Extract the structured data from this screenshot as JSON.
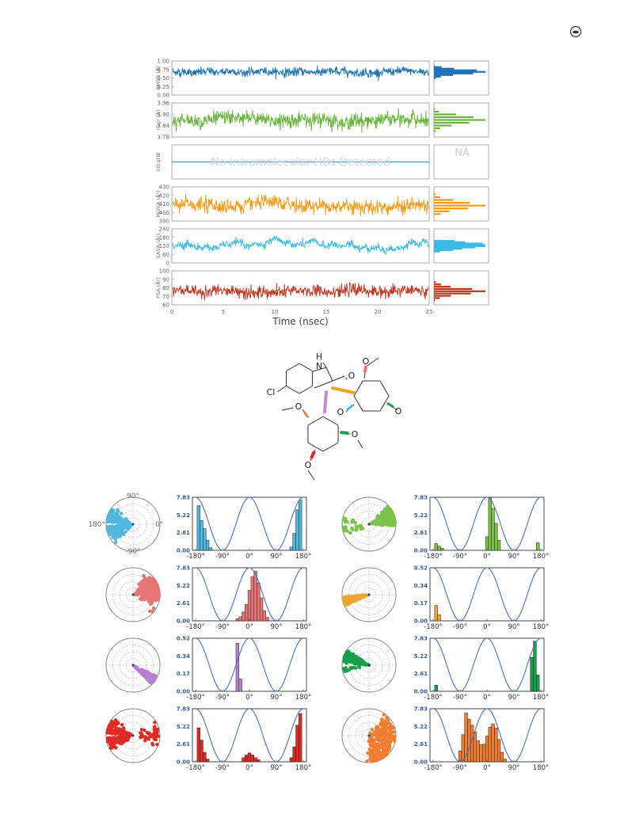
{
  "chart_data": [
    {
      "type": "line",
      "panel": "timeseries",
      "xlabel": "Time (nsec)",
      "xlim": [
        0,
        25
      ],
      "xticks": [
        0,
        5,
        10,
        15,
        20,
        25
      ],
      "rows": [
        {
          "key": "rmsd",
          "ylabel": "RMSD (Å)",
          "yticks_labels": [
            "1.00",
            "0.75",
            "0.50",
            "0.25",
            "0.00"
          ],
          "ylim": [
            0.0,
            1.0
          ],
          "mean": 0.68,
          "spread": 0.07,
          "color": "#1a72b5"
        },
        {
          "key": "rgyr",
          "ylabel": "rGyr (Å)",
          "yticks_labels": [
            "3.96",
            "3.90",
            "3.84",
            "3.78"
          ],
          "ylim": [
            3.78,
            3.96
          ],
          "mean": 3.87,
          "spread": 0.022,
          "color": "#6ab43e"
        },
        {
          "key": "intrahb",
          "ylabel": "intraHB",
          "flat_value": 0.5,
          "message": "No Intramolecular HBs Detected",
          "side_label": "NA",
          "color": "#3aa0c8"
        },
        {
          "key": "molsa",
          "ylabel": "MolSA (Å²)",
          "yticks_labels": [
            "430",
            "420",
            "410",
            "400",
            "390"
          ],
          "ylim": [
            390,
            430
          ],
          "mean": 408,
          "spread": 5,
          "color": "#f39c1a"
        },
        {
          "key": "sasa",
          "ylabel": "SASA (Å²)",
          "yticks_labels": [
            "240",
            "180",
            "120",
            "60",
            "0"
          ],
          "ylim": [
            0,
            240
          ],
          "mean": 118,
          "spread": 14,
          "color": "#3bbbe6"
        },
        {
          "key": "psa",
          "ylabel": "PSA (Å²)",
          "yticks_labels": [
            "100",
            "90",
            "80",
            "70",
            "60"
          ],
          "ylim": [
            60,
            100
          ],
          "mean": 76,
          "spread": 4,
          "color": "#c0341d"
        }
      ]
    },
    {
      "type": "bar",
      "panel": "torsion-profiles",
      "x_tick_labels": [
        "-180°",
        "-90°",
        "0°",
        "90°",
        "180°"
      ],
      "polar_labels": {
        "top": "90°",
        "left": "180°",
        "right": "0°",
        "bottom": "-90°"
      },
      "torsions": [
        {
          "id": "t1",
          "color": "#4fb8e0",
          "yticks": [
            "7.83",
            "5.22",
            "2.61",
            "0.00"
          ],
          "ymax": 7.83,
          "bins_center": [
            -170,
            -160,
            -150,
            -140,
            -130,
            140,
            150,
            160,
            170
          ],
          "values": [
            6.6,
            4.4,
            3.2,
            1.5,
            0.4,
            0.5,
            2.5,
            6.0,
            7.4
          ]
        },
        {
          "id": "t2",
          "color": "#7cc24a",
          "yticks": [
            "7.83",
            "5.22",
            "2.61",
            "0.00"
          ],
          "ymax": 7.83,
          "bins_center": [
            -170,
            -160,
            -150,
            0,
            10,
            20,
            30,
            40,
            170
          ],
          "values": [
            1.0,
            0.6,
            0.3,
            2.0,
            7.8,
            6.2,
            4.0,
            1.5,
            1.1
          ]
        },
        {
          "id": "t3",
          "color": "#e87575",
          "yticks": [
            "7.83",
            "5.22",
            "2.61",
            "0.00"
          ],
          "ymax": 7.83,
          "bins_center": [
            -40,
            -30,
            -20,
            -10,
            0,
            10,
            20,
            30,
            40,
            50,
            60
          ],
          "values": [
            0.3,
            0.6,
            1.3,
            2.4,
            4.5,
            6.5,
            7.3,
            5.6,
            3.4,
            1.5,
            0.5
          ]
        },
        {
          "id": "t4",
          "color": "#f0a530",
          "yticks": [
            "0.52",
            "0.34",
            "0.17",
            "0.00"
          ],
          "ymax": 0.52,
          "bins_center": [
            -170,
            -160
          ],
          "values": [
            0.15,
            0.06
          ]
        },
        {
          "id": "t5",
          "color": "#b97fd0",
          "yticks": [
            "0.52",
            "0.34",
            "0.17",
            "0.00"
          ],
          "ymax": 0.52,
          "bins_center": [
            -40,
            -30
          ],
          "values": [
            0.47,
            0.12
          ]
        },
        {
          "id": "t6",
          "color": "#16a04a",
          "yticks": [
            "7.83",
            "5.22",
            "2.61",
            "0.00"
          ],
          "ymax": 7.83,
          "bins_center": [
            -170,
            150,
            160,
            170
          ],
          "values": [
            0.9,
            5.0,
            7.4,
            2.4
          ]
        },
        {
          "id": "t7",
          "color": "#de2c24",
          "yticks": [
            "7.83",
            "5.22",
            "2.61",
            "0.00"
          ],
          "ymax": 7.83,
          "bins_center": [
            -170,
            -160,
            -150,
            -140,
            -20,
            -10,
            0,
            10,
            20,
            30,
            140,
            150,
            160,
            170
          ],
          "values": [
            5.0,
            3.2,
            1.4,
            0.4,
            0.6,
            1.0,
            1.3,
            1.0,
            0.6,
            0.3,
            0.6,
            2.2,
            5.4,
            7.1
          ]
        },
        {
          "id": "t8",
          "color": "#f07d32",
          "yticks": [
            "7.83",
            "5.22",
            "2.61",
            "0.00"
          ],
          "ymax": 7.83,
          "bins_center": [
            -90,
            -80,
            -70,
            -60,
            -50,
            -40,
            -30,
            -20,
            -10,
            0,
            10,
            20,
            30,
            40,
            50,
            60
          ],
          "values": [
            1.6,
            4.0,
            7.2,
            6.3,
            5.4,
            4.4,
            3.1,
            2.5,
            2.6,
            3.8,
            5.1,
            5.6,
            5.0,
            3.3,
            1.4,
            0.4
          ]
        }
      ]
    }
  ],
  "molecule": {
    "labels": {
      "nh": "N",
      "h": "H",
      "o_carbonyl": "O",
      "cl": "Cl",
      "o": "O"
    }
  }
}
